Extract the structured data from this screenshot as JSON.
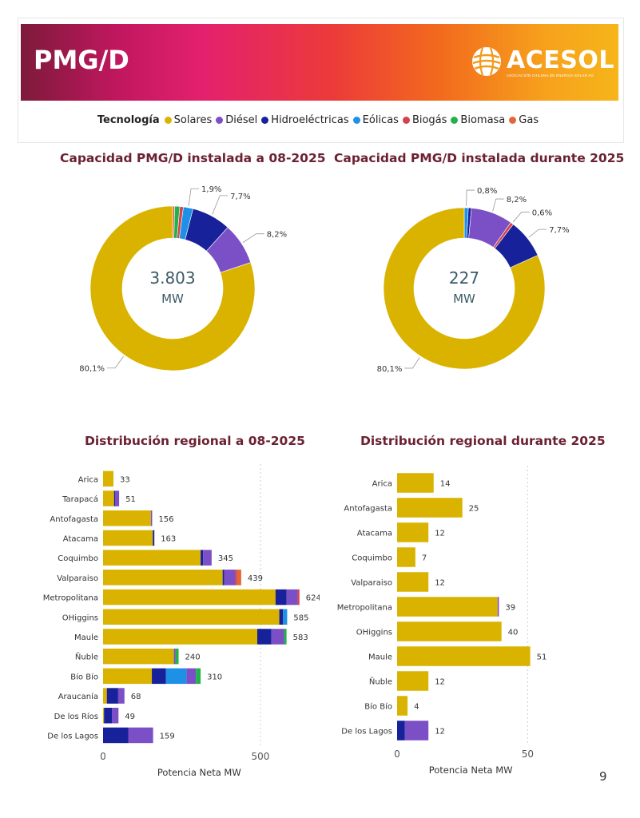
{
  "header": {
    "title": "PMG/D",
    "logo_text": "ACESOL",
    "logo_subtitle": "ASOCIACIÓN CHILENA DE ENERGÍA SOLAR AG"
  },
  "legend": {
    "title": "Tecnología",
    "items": [
      {
        "label": "Solares",
        "color": "#d9b300"
      },
      {
        "label": "Diésel",
        "color": "#7b4fc6"
      },
      {
        "label": "Hidroeléctricas",
        "color": "#17229a"
      },
      {
        "label": "Eólicas",
        "color": "#1e90e6"
      },
      {
        "label": "Biogás",
        "color": "#d2424f"
      },
      {
        "label": "Biomasa",
        "color": "#22b24c"
      },
      {
        "label": "Gas",
        "color": "#e3663a"
      }
    ]
  },
  "page_number": "9",
  "chart_data": [
    {
      "type": "pie",
      "title": "Capacidad PMG/D instalada a 08-2025",
      "center_value": "3.803",
      "center_unit": "MW",
      "slices": [
        {
          "name": "Solares",
          "value": 80.1,
          "label": "80,1%"
        },
        {
          "name": "Diésel",
          "value": 8.2,
          "label": "8,2%"
        },
        {
          "name": "Hidroeléctricas",
          "value": 7.7,
          "label": "7,7%"
        },
        {
          "name": "Eólicas",
          "value": 1.9,
          "label": "1,9%"
        },
        {
          "name": "Biogás",
          "value": 0.7,
          "label": ""
        },
        {
          "name": "Biomasa",
          "value": 1.0,
          "label": ""
        },
        {
          "name": "Gas",
          "value": 0.4,
          "label": ""
        }
      ]
    },
    {
      "type": "pie",
      "title": "Capacidad PMG/D instalada durante 2025",
      "center_value": "227",
      "center_unit": "MW",
      "slices": [
        {
          "name": "Eólicas",
          "value": 0.8,
          "label": "0,8%"
        },
        {
          "name": "Hidroeléctricas",
          "value": 0.6,
          "label": ""
        },
        {
          "name": "Diésel",
          "value": 8.2,
          "label": "8,2%"
        },
        {
          "name": "Biogás",
          "value": 0.6,
          "label": "0,6%"
        },
        {
          "name": "Hidroeléctricas",
          "value": 7.7,
          "label": "7,7%"
        },
        {
          "name": "Solares",
          "value": 80.1,
          "label": "80,1%"
        }
      ]
    },
    {
      "type": "bar",
      "orientation": "horizontal",
      "stacked": true,
      "title": "Distribución regional a 08-2025",
      "xlabel": "Potencia Neta MW",
      "xticks": [
        0,
        500
      ],
      "xlim": [
        0,
        650
      ],
      "categories": [
        "Arica",
        "Tarapacá",
        "Antofagasta",
        "Atacama",
        "Coquimbo",
        "Valparaiso",
        "Metropolitana",
        "OHiggins",
        "Maule",
        "Ñuble",
        "Bío Bío",
        "Araucanía",
        "De los Ríos",
        "De los Lagos"
      ],
      "totals": [
        33,
        51,
        156,
        163,
        345,
        439,
        624,
        585,
        583,
        240,
        310,
        68,
        49,
        159
      ],
      "series": [
        {
          "name": "Solares",
          "values": [
            33,
            35,
            152,
            158,
            310,
            380,
            548,
            560,
            490,
            225,
            155,
            12,
            3,
            0
          ]
        },
        {
          "name": "Hidroeléctricas",
          "values": [
            0,
            4,
            0,
            5,
            8,
            5,
            35,
            12,
            45,
            0,
            45,
            36,
            25,
            80
          ]
        },
        {
          "name": "Eólicas",
          "values": [
            0,
            0,
            0,
            0,
            0,
            0,
            0,
            13,
            0,
            0,
            65,
            0,
            0,
            0
          ]
        },
        {
          "name": "Diésel",
          "values": [
            0,
            12,
            4,
            0,
            27,
            35,
            35,
            0,
            40,
            5,
            30,
            20,
            21,
            79
          ]
        },
        {
          "name": "Biogás",
          "values": [
            0,
            0,
            0,
            0,
            0,
            4,
            6,
            0,
            0,
            0,
            0,
            0,
            0,
            0
          ]
        },
        {
          "name": "Biomasa",
          "values": [
            0,
            0,
            0,
            0,
            0,
            0,
            0,
            0,
            8,
            10,
            15,
            0,
            0,
            0
          ]
        },
        {
          "name": "Gas",
          "values": [
            0,
            0,
            0,
            0,
            0,
            15,
            0,
            0,
            0,
            0,
            0,
            0,
            0,
            0
          ]
        }
      ]
    },
    {
      "type": "bar",
      "orientation": "horizontal",
      "stacked": true,
      "title": "Distribución regional durante 2025",
      "xlabel": "Potencia Neta MW",
      "xticks": [
        0,
        50
      ],
      "xlim": [
        0,
        60
      ],
      "categories": [
        "Arica",
        "Antofagasta",
        "Atacama",
        "Coquimbo",
        "Valparaiso",
        "Metropolitana",
        "OHiggins",
        "Maule",
        "Ñuble",
        "Bío Bío",
        "De los Lagos"
      ],
      "totals": [
        14,
        25,
        12,
        7,
        12,
        39,
        40,
        51,
        12,
        4,
        12
      ],
      "series": [
        {
          "name": "Solares",
          "values": [
            14,
            25,
            12,
            7,
            12,
            38.5,
            40,
            51,
            12,
            4,
            0
          ]
        },
        {
          "name": "Hidroeléctricas",
          "values": [
            0,
            0,
            0,
            0,
            0,
            0,
            0,
            0,
            0,
            0,
            3
          ]
        },
        {
          "name": "Diésel",
          "values": [
            0,
            0,
            0,
            0,
            0,
            0.5,
            0,
            0,
            0,
            0,
            9
          ]
        }
      ]
    }
  ]
}
